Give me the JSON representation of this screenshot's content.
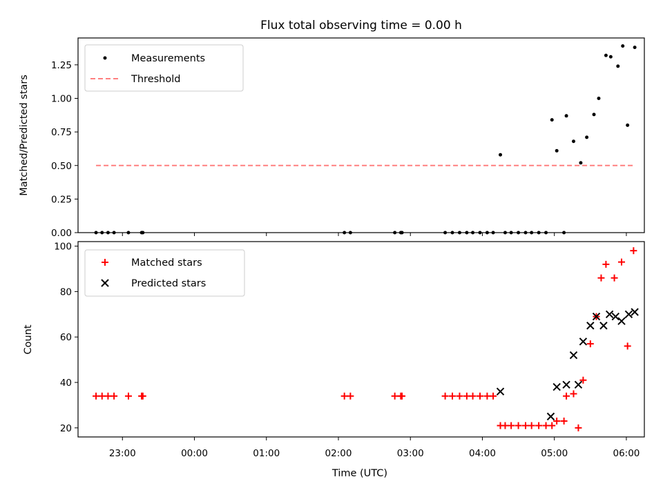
{
  "chart_data": [
    {
      "type": "scatter",
      "title": "Flux total observing time = 0.00 h",
      "xlabel": "",
      "ylabel": "Matched/Predicted stars",
      "xlim": [
        "22:23",
        "06:15"
      ],
      "ylim": [
        0,
        1.45
      ],
      "yticks": [
        0.0,
        0.25,
        0.5,
        0.75,
        1.0,
        1.25
      ],
      "ytick_labels": [
        "0.00",
        "0.25",
        "0.50",
        "0.75",
        "1.00",
        "1.25"
      ],
      "xticks": [
        "23:00",
        "00:00",
        "01:00",
        "02:00",
        "03:00",
        "04:00",
        "05:00",
        "06:00"
      ],
      "show_xtick_labels": false,
      "grid": false,
      "legend": "top-left",
      "legend_labels": [
        "Measurements",
        "Threshold"
      ],
      "series": [
        {
          "name": "Measurements",
          "marker": "dot",
          "color": "#000000",
          "points": [
            [
              "22:38",
              0.0
            ],
            [
              "22:43",
              0.0
            ],
            [
              "22:48",
              0.0
            ],
            [
              "22:53",
              0.0
            ],
            [
              "23:05",
              0.0
            ],
            [
              "23:16",
              0.0
            ],
            [
              "23:17",
              0.0
            ],
            [
              "02:05",
              0.0
            ],
            [
              "02:10",
              0.0
            ],
            [
              "02:47",
              0.0
            ],
            [
              "02:52",
              0.0
            ],
            [
              "02:53",
              0.0
            ],
            [
              "03:29",
              0.0
            ],
            [
              "03:35",
              0.0
            ],
            [
              "03:41",
              0.0
            ],
            [
              "03:47",
              0.0
            ],
            [
              "03:52",
              0.0
            ],
            [
              "03:58",
              0.0
            ],
            [
              "04:04",
              0.0
            ],
            [
              "04:09",
              0.0
            ],
            [
              "04:15",
              0.58
            ],
            [
              "04:19",
              0.0
            ],
            [
              "04:24",
              0.0
            ],
            [
              "04:30",
              0.0
            ],
            [
              "04:36",
              0.0
            ],
            [
              "04:41",
              0.0
            ],
            [
              "04:47",
              0.0
            ],
            [
              "04:53",
              0.0
            ],
            [
              "04:58",
              0.84
            ],
            [
              "05:02",
              0.61
            ],
            [
              "05:08",
              0.0
            ],
            [
              "05:10",
              0.87
            ],
            [
              "05:16",
              0.68
            ],
            [
              "05:22",
              0.52
            ],
            [
              "05:27",
              0.71
            ],
            [
              "05:33",
              0.88
            ],
            [
              "05:37",
              1.0
            ],
            [
              "05:43",
              1.32
            ],
            [
              "05:47",
              1.31
            ],
            [
              "05:53",
              1.24
            ],
            [
              "05:57",
              1.39
            ],
            [
              "06:01",
              0.8
            ],
            [
              "06:07",
              1.38
            ]
          ]
        },
        {
          "name": "Threshold",
          "marker": "dashed-line",
          "color": "#ff7f7f",
          "points": [
            [
              "22:38",
              0.5
            ],
            [
              "06:07",
              0.5
            ]
          ]
        }
      ]
    },
    {
      "type": "scatter",
      "title": "",
      "xlabel": "Time (UTC)",
      "ylabel": "Count",
      "xlim": [
        "22:23",
        "06:15"
      ],
      "ylim": [
        16,
        102
      ],
      "yticks": [
        20,
        40,
        60,
        80,
        100
      ],
      "ytick_labels": [
        "20",
        "40",
        "60",
        "80",
        "100"
      ],
      "xticks": [
        "23:00",
        "00:00",
        "01:00",
        "02:00",
        "03:00",
        "04:00",
        "05:00",
        "06:00"
      ],
      "xtick_labels": [
        "23:00",
        "00:00",
        "01:00",
        "02:00",
        "03:00",
        "04:00",
        "05:00",
        "06:00"
      ],
      "grid": false,
      "legend": "top-left",
      "legend_labels": [
        "Matched stars",
        "Predicted stars"
      ],
      "series": [
        {
          "name": "Matched stars",
          "marker": "plus",
          "color": "#ff0000",
          "points": [
            [
              "22:38",
              34
            ],
            [
              "22:43",
              34
            ],
            [
              "22:48",
              34
            ],
            [
              "22:53",
              34
            ],
            [
              "23:05",
              34
            ],
            [
              "23:16",
              34
            ],
            [
              "23:17",
              34
            ],
            [
              "02:05",
              34
            ],
            [
              "02:10",
              34
            ],
            [
              "02:47",
              34
            ],
            [
              "02:52",
              34
            ],
            [
              "02:53",
              34
            ],
            [
              "03:29",
              34
            ],
            [
              "03:35",
              34
            ],
            [
              "03:41",
              34
            ],
            [
              "03:47",
              34
            ],
            [
              "03:52",
              34
            ],
            [
              "03:58",
              34
            ],
            [
              "04:04",
              34
            ],
            [
              "04:09",
              34
            ],
            [
              "04:15",
              21
            ],
            [
              "04:19",
              21
            ],
            [
              "04:24",
              21
            ],
            [
              "04:30",
              21
            ],
            [
              "04:36",
              21
            ],
            [
              "04:41",
              21
            ],
            [
              "04:47",
              21
            ],
            [
              "04:53",
              21
            ],
            [
              "04:58",
              21
            ],
            [
              "05:02",
              23
            ],
            [
              "05:08",
              23
            ],
            [
              "05:10",
              34
            ],
            [
              "05:16",
              35
            ],
            [
              "05:20",
              20
            ],
            [
              "05:24",
              41
            ],
            [
              "05:30",
              57
            ],
            [
              "05:35",
              69
            ],
            [
              "05:39",
              86
            ],
            [
              "05:43",
              92
            ],
            [
              "05:50",
              86
            ],
            [
              "05:56",
              93
            ],
            [
              "06:01",
              56
            ],
            [
              "06:06",
              98
            ]
          ]
        },
        {
          "name": "Predicted stars",
          "marker": "x",
          "color": "#000000",
          "points": [
            [
              "04:15",
              36
            ],
            [
              "04:57",
              25
            ],
            [
              "05:02",
              38
            ],
            [
              "05:10",
              39
            ],
            [
              "05:16",
              52
            ],
            [
              "05:20",
              39
            ],
            [
              "05:24",
              58
            ],
            [
              "05:30",
              65
            ],
            [
              "05:35",
              69
            ],
            [
              "05:41",
              65
            ],
            [
              "05:46",
              70
            ],
            [
              "05:51",
              69
            ],
            [
              "05:56",
              67
            ],
            [
              "06:02",
              70
            ],
            [
              "06:07",
              71
            ]
          ]
        }
      ]
    }
  ]
}
